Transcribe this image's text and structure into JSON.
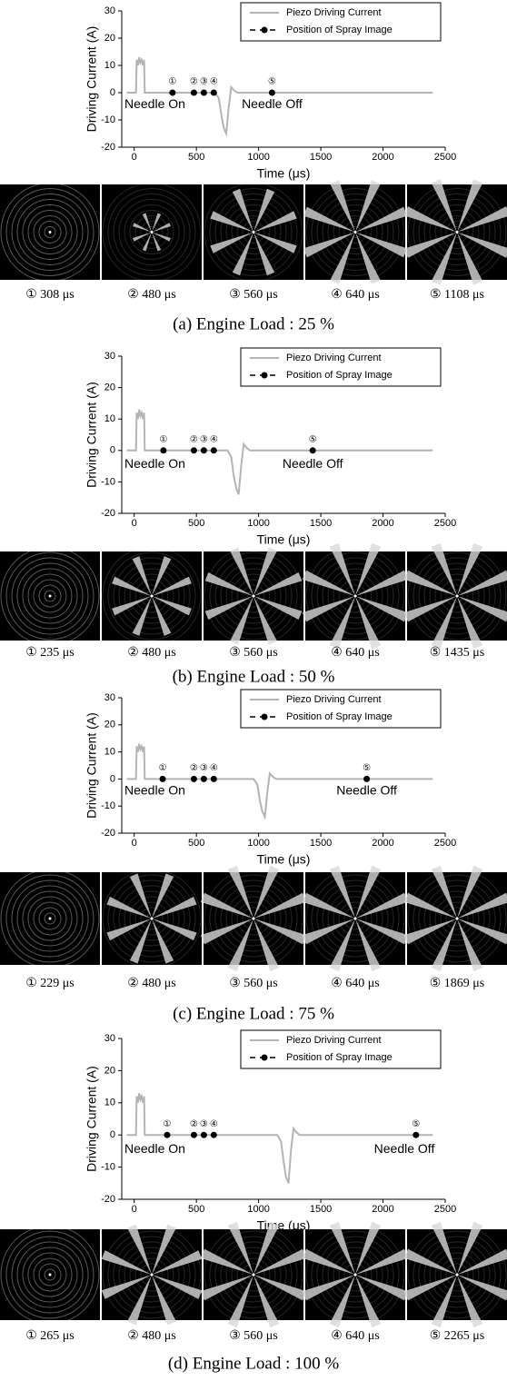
{
  "chart_data": [
    {
      "type": "line",
      "xlabel": "Time (μs)",
      "ylabel": "Driving Current (A)",
      "xlim": [
        -100,
        2500
      ],
      "ylim": [
        -20,
        30
      ],
      "xticks": [
        0,
        500,
        1000,
        1500,
        2000,
        2500
      ],
      "yticks": [
        -20,
        -10,
        0,
        10,
        20,
        30
      ],
      "annotations": [
        "Needle On",
        "Needle Off"
      ],
      "series": [
        {
          "name": "Piezo Driving Current",
          "color": "#b4b4b4",
          "x": [
            -60,
            15,
            20,
            30,
            40,
            50,
            60,
            70,
            80,
            85,
            100,
            650,
            680,
            700,
            720,
            740,
            760,
            780,
            800,
            830,
            900,
            2400
          ],
          "values": [
            0,
            0,
            12,
            10,
            13,
            11,
            12,
            10,
            12,
            0,
            0,
            0,
            -2,
            -8,
            -13,
            -15,
            -5,
            2,
            1,
            0,
            0,
            0
          ]
        },
        {
          "name": "Position of Spray Image",
          "color": "#000000",
          "x": [
            308,
            480,
            560,
            640,
            1108
          ],
          "values": [
            0,
            0,
            0,
            0,
            0
          ],
          "point_labels": [
            "①",
            "②",
            "③",
            "④",
            "⑤"
          ]
        }
      ]
    },
    {
      "type": "line",
      "xlabel": "Time (μs)",
      "ylabel": "Driving Current (A)",
      "xlim": [
        -100,
        2500
      ],
      "ylim": [
        -20,
        30
      ],
      "xticks": [
        0,
        500,
        1000,
        1500,
        2000,
        2500
      ],
      "yticks": [
        -20,
        -10,
        0,
        10,
        20,
        30
      ],
      "annotations": [
        "Needle On",
        "Needle Off"
      ],
      "series": [
        {
          "name": "Piezo Driving Current",
          "color": "#b4b4b4",
          "x": [
            -60,
            15,
            20,
            30,
            40,
            50,
            60,
            70,
            80,
            85,
            100,
            750,
            780,
            800,
            820,
            840,
            860,
            880,
            900,
            930,
            1000,
            2400
          ],
          "values": [
            0,
            0,
            12,
            10,
            13,
            11,
            12,
            10,
            12,
            0,
            0,
            0,
            -2,
            -8,
            -12,
            -14,
            -5,
            2,
            1,
            0,
            0,
            0
          ]
        },
        {
          "name": "Position of Spray Image",
          "color": "#000000",
          "x": [
            235,
            480,
            560,
            640,
            1435
          ],
          "values": [
            0,
            0,
            0,
            0,
            0
          ],
          "point_labels": [
            "①",
            "②",
            "③",
            "④",
            "⑤"
          ]
        }
      ]
    },
    {
      "type": "line",
      "xlabel": "Time (μs)",
      "ylabel": "Driving Current (A)",
      "xlim": [
        -100,
        2500
      ],
      "ylim": [
        -20,
        30
      ],
      "xticks": [
        0,
        500,
        1000,
        1500,
        2000,
        2500
      ],
      "yticks": [
        -20,
        -10,
        0,
        10,
        20,
        30
      ],
      "annotations": [
        "Needle On",
        "Needle Off"
      ],
      "series": [
        {
          "name": "Piezo Driving Current",
          "color": "#b4b4b4",
          "x": [
            -60,
            15,
            20,
            30,
            40,
            50,
            60,
            70,
            80,
            85,
            100,
            960,
            990,
            1010,
            1030,
            1050,
            1070,
            1090,
            1110,
            1140,
            1200,
            2400
          ],
          "values": [
            0,
            0,
            12,
            10,
            13,
            11,
            12,
            10,
            12,
            0,
            0,
            0,
            -2,
            -8,
            -12,
            -14,
            -5,
            2,
            1,
            0,
            0,
            0
          ]
        },
        {
          "name": "Position of Spray Image",
          "color": "#000000",
          "x": [
            229,
            480,
            560,
            640,
            1869
          ],
          "values": [
            0,
            0,
            0,
            0,
            0
          ],
          "point_labels": [
            "①",
            "②",
            "③",
            "④",
            "⑤"
          ]
        }
      ]
    },
    {
      "type": "line",
      "xlabel": "Time (μs)",
      "ylabel": "Driving Current (A)",
      "xlim": [
        -100,
        2500
      ],
      "ylim": [
        -20,
        30
      ],
      "xticks": [
        0,
        500,
        1000,
        1500,
        2000,
        2500
      ],
      "yticks": [
        -20,
        -10,
        0,
        10,
        20,
        30
      ],
      "annotations": [
        "Needle On",
        "Needle Off"
      ],
      "series": [
        {
          "name": "Piezo Driving Current",
          "color": "#b4b4b4",
          "x": [
            -60,
            15,
            20,
            30,
            40,
            50,
            60,
            70,
            80,
            85,
            100,
            1150,
            1180,
            1200,
            1220,
            1240,
            1260,
            1280,
            1300,
            1330,
            1400,
            2400
          ],
          "values": [
            0,
            0,
            12,
            10,
            13,
            11,
            12,
            10,
            12,
            0,
            0,
            0,
            -2,
            -8,
            -13,
            -15,
            -5,
            2,
            1,
            0,
            0,
            0
          ]
        },
        {
          "name": "Position of Spray Image",
          "color": "#000000",
          "x": [
            265,
            480,
            560,
            640,
            2265
          ],
          "values": [
            0,
            0,
            0,
            0,
            0
          ],
          "point_labels": [
            "①",
            "②",
            "③",
            "④",
            "⑤"
          ]
        }
      ]
    }
  ],
  "figure": [
    {
      "images": [
        "① 308 μs",
        "② 480 μs",
        "③ 560 μs",
        "④ 640 μs",
        "⑤ 1108 μs"
      ],
      "caption": "(a) Engine Load : 25 %"
    },
    {
      "images": [
        "① 235 μs",
        "② 480 μs",
        "③ 560 μs",
        "④ 640 μs",
        "⑤ 1435 μs"
      ],
      "caption": "(b) Engine Load : 50 %"
    },
    {
      "images": [
        "① 229 μs",
        "② 480 μs",
        "③ 560 μs",
        "④ 640 μs",
        "⑤ 1869 μs"
      ],
      "caption": "(c) Engine Load : 75 %"
    },
    {
      "images": [
        "① 265 μs",
        "② 480 μs",
        "③ 560 μs",
        "④ 640 μs",
        "⑤ 2265 μs"
      ],
      "caption": "(d) Engine Load : 100 %"
    }
  ]
}
